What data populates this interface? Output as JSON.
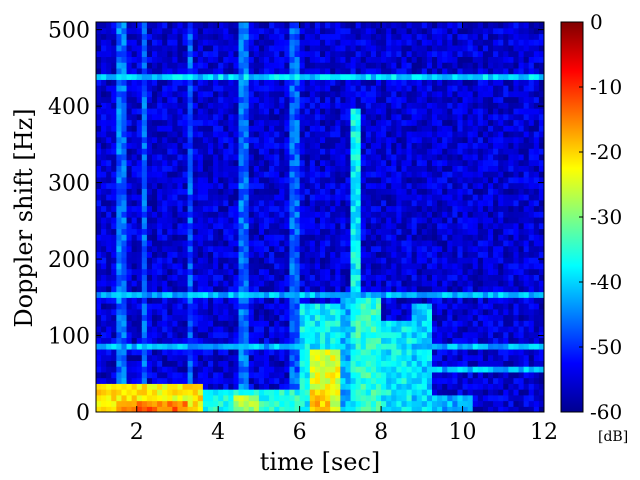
{
  "chart_data": {
    "type": "heatmap",
    "title": "",
    "xlabel": "time [sec]",
    "ylabel": "Doppler shift [Hz]",
    "xlim": [
      1,
      12
    ],
    "ylim": [
      0,
      510
    ],
    "x_ticks": [
      2,
      4,
      6,
      8,
      10,
      12
    ],
    "y_ticks": [
      0,
      100,
      200,
      300,
      400,
      500
    ],
    "colorbar": {
      "label": "[dB]",
      "range": [
        -60,
        0
      ],
      "ticks": [
        0,
        -10,
        -20,
        -30,
        -40,
        -50,
        -60
      ],
      "colormap": "jet"
    },
    "background_level_db": -55,
    "horizontal_lines": [
      {
        "freq": 440,
        "level_db": -40,
        "from_time": 1,
        "to_time": 12
      },
      {
        "freq": 155,
        "level_db": -42,
        "from_time": 1,
        "to_time": 12
      },
      {
        "freq": 85,
        "level_db": -42,
        "from_time": 1,
        "to_time": 12
      },
      {
        "freq": 55,
        "level_db": -42,
        "from_time": 9,
        "to_time": 12
      }
    ],
    "vertical_streaks": [
      {
        "time": 1.6,
        "level_db": -46,
        "fmax": 510
      },
      {
        "time": 2.2,
        "level_db": -47,
        "fmax": 510
      },
      {
        "time": 3.3,
        "level_db": -47,
        "fmax": 510
      },
      {
        "time": 4.6,
        "level_db": -46,
        "fmax": 510
      },
      {
        "time": 5.9,
        "level_db": -47,
        "fmax": 510
      },
      {
        "time": 7.4,
        "level_db": -38,
        "fmax": 400
      }
    ],
    "energy_regions": [
      {
        "t0": 1,
        "t1": 3.6,
        "f0": 0,
        "f1": 35,
        "level_db": -22
      },
      {
        "t0": 1.5,
        "t1": 3.2,
        "f0": 0,
        "f1": 15,
        "level_db": -14
      },
      {
        "t0": 3.6,
        "t1": 6,
        "f0": 0,
        "f1": 30,
        "level_db": -36
      },
      {
        "t0": 4.4,
        "t1": 5,
        "f0": 0,
        "f1": 25,
        "level_db": -28
      },
      {
        "t0": 6,
        "t1": 7,
        "f0": 0,
        "f1": 145,
        "level_db": -38
      },
      {
        "t0": 6.2,
        "t1": 7,
        "f0": 0,
        "f1": 80,
        "level_db": -24
      },
      {
        "t0": 6.3,
        "t1": 6.8,
        "f0": 0,
        "f1": 30,
        "level_db": -18
      },
      {
        "t0": 7,
        "t1": 8,
        "f0": 0,
        "f1": 150,
        "level_db": -42
      },
      {
        "t0": 7.4,
        "t1": 8,
        "f0": 0,
        "f1": 150,
        "level_db": -35
      },
      {
        "t0": 8,
        "t1": 8.8,
        "f0": 0,
        "f1": 120,
        "level_db": -38
      },
      {
        "t0": 8.8,
        "t1": 9.3,
        "f0": 0,
        "f1": 140,
        "level_db": -40
      },
      {
        "t0": 9.3,
        "t1": 10.2,
        "f0": 0,
        "f1": 20,
        "level_db": -42
      }
    ]
  }
}
